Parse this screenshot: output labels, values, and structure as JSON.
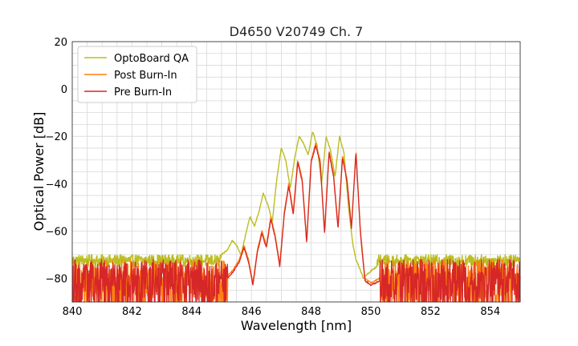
{
  "chart_data": {
    "type": "line",
    "title": "D4650 V20749 Ch. 7",
    "xlabel": "Wavelength [nm]",
    "ylabel": "Optical Power [dB]",
    "xlim": [
      840,
      855
    ],
    "ylim": [
      -90,
      20
    ],
    "xticks": [
      840,
      842,
      844,
      846,
      848,
      850,
      852,
      854
    ],
    "xtick_labels": [
      "840",
      "842",
      "844",
      "846",
      "848",
      "850",
      "852",
      "854"
    ],
    "yticks": [
      20,
      0,
      -20,
      -40,
      -60,
      -80
    ],
    "ytick_labels": [
      "20",
      "0",
      "−20",
      "−40",
      "−60",
      "−80"
    ],
    "grid": true,
    "legend_position": "top-left",
    "series": [
      {
        "name": "OptoBoard QA",
        "color": "#bcbd22",
        "noise_floor": -72.5,
        "x": [
          840,
          845.0,
          845.2,
          845.35,
          845.5,
          845.65,
          845.8,
          845.95,
          846.1,
          846.25,
          846.4,
          846.55,
          846.7,
          846.85,
          847.0,
          847.15,
          847.3,
          847.45,
          847.6,
          847.75,
          847.9,
          848.05,
          848.2,
          848.35,
          848.5,
          848.65,
          848.8,
          848.95,
          849.1,
          849.25,
          849.4,
          849.5,
          849.6,
          849.75,
          849.9,
          850.2,
          855
        ],
        "y": [
          -71,
          -70,
          -68,
          -64,
          -66,
          -70,
          -62,
          -54,
          -58,
          -52,
          -44,
          -49,
          -56,
          -38,
          -25,
          -30,
          -42,
          -29,
          -20,
          -23,
          -28,
          -18,
          -24,
          -40,
          -20,
          -26,
          -37,
          -20,
          -27,
          -50,
          -66,
          -72,
          -75,
          -80,
          -78,
          -75,
          -75
        ]
      },
      {
        "name": "Post Burn-In",
        "color": "#ff7f0e",
        "noise_floor": -80,
        "x": [
          840,
          845.2,
          845.4,
          845.6,
          845.75,
          845.9,
          846.05,
          846.2,
          846.35,
          846.5,
          846.65,
          846.8,
          846.95,
          847.1,
          847.25,
          847.4,
          847.55,
          847.7,
          847.85,
          848.0,
          848.15,
          848.3,
          848.45,
          848.6,
          848.75,
          848.9,
          849.05,
          849.2,
          849.35,
          849.5,
          849.65,
          849.8,
          850.0,
          850.3,
          855
        ],
        "y": [
          -80,
          -79,
          -76,
          -72,
          -66,
          -72,
          -82,
          -68,
          -60,
          -66,
          -54,
          -62,
          -74,
          -52,
          -40,
          -52,
          -30,
          -38,
          -64,
          -30,
          -23,
          -30,
          -60,
          -26,
          -36,
          -58,
          -28,
          -38,
          -58,
          -26,
          -60,
          -80,
          -82,
          -80,
          -80
        ]
      },
      {
        "name": "Pre Burn-In",
        "color": "#d62728",
        "noise_floor": -81,
        "x": [
          840,
          845.2,
          845.4,
          845.6,
          845.75,
          845.9,
          846.05,
          846.2,
          846.35,
          846.5,
          846.65,
          846.8,
          846.95,
          847.1,
          847.25,
          847.4,
          847.55,
          847.7,
          847.85,
          848.0,
          848.15,
          848.3,
          848.45,
          848.6,
          848.75,
          848.9,
          849.05,
          849.2,
          849.35,
          849.5,
          849.65,
          849.8,
          850.0,
          850.3,
          855
        ],
        "y": [
          -81,
          -80,
          -77,
          -73,
          -67,
          -73,
          -83,
          -69,
          -61,
          -67,
          -55,
          -63,
          -75,
          -53,
          -41,
          -53,
          -31,
          -39,
          -65,
          -31,
          -24,
          -31,
          -61,
          -27,
          -37,
          -59,
          -29,
          -39,
          -59,
          -27,
          -61,
          -81,
          -83,
          -81,
          -81
        ]
      }
    ]
  }
}
